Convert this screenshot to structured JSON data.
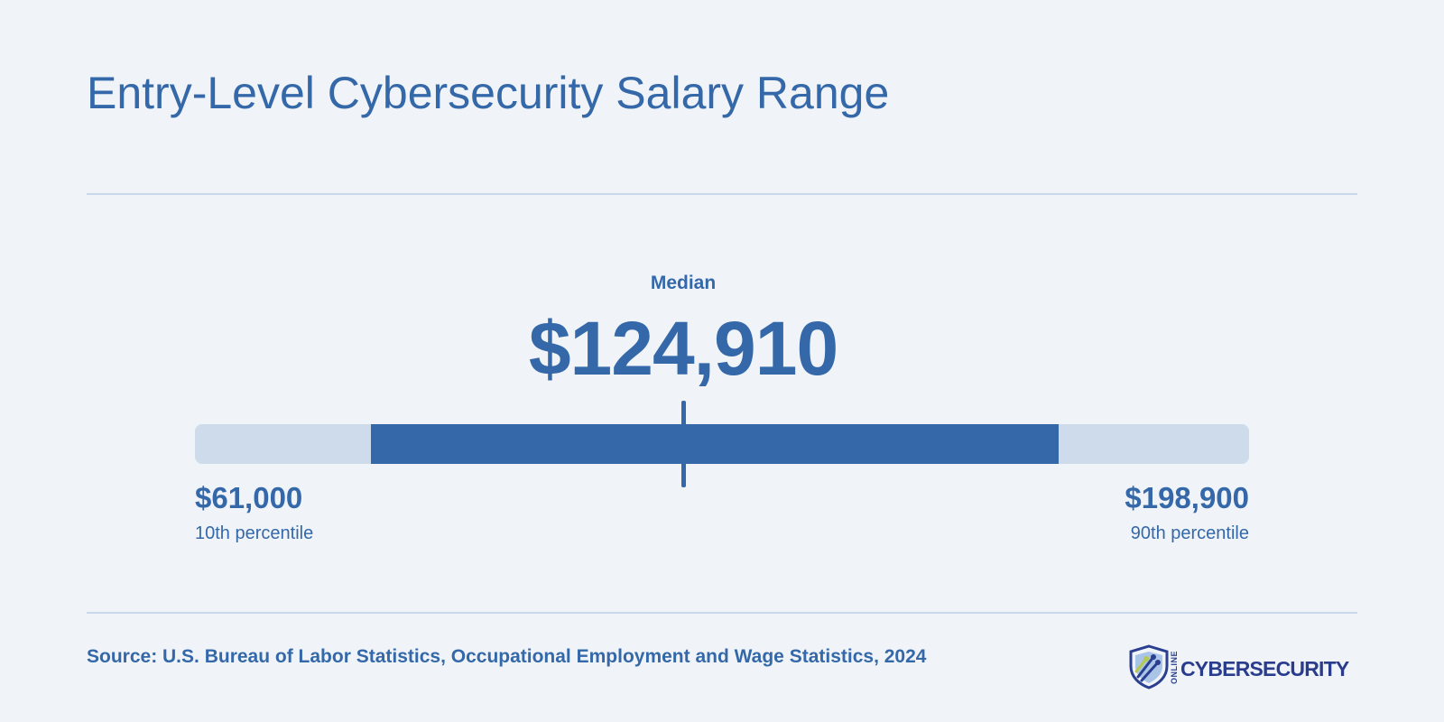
{
  "chart_data": {
    "type": "range",
    "title": "Entry-Level Cybersecurity Salary Range",
    "median_label": "Median",
    "median_value": 124910,
    "median_text": "$124,910",
    "low": {
      "value": 61000,
      "text": "$61,000",
      "label": "10th percentile"
    },
    "high": {
      "value": 198900,
      "text": "$198,900",
      "label": "90th percentile"
    },
    "highlight_range": [
      84000,
      174000
    ],
    "colors": {
      "primary": "#3468a8",
      "track": "#cddbea",
      "rule": "#c7d8ec",
      "background": "#f0f4f9"
    }
  },
  "footer": {
    "source": "Source: U.S. Bureau of Labor Statistics, Occupational Employment and Wage Statistics, 2024"
  },
  "logo": {
    "online": "ONLINE",
    "wordmark": "CYBERSECURITY",
    "icon": "shield-circuit-icon"
  }
}
